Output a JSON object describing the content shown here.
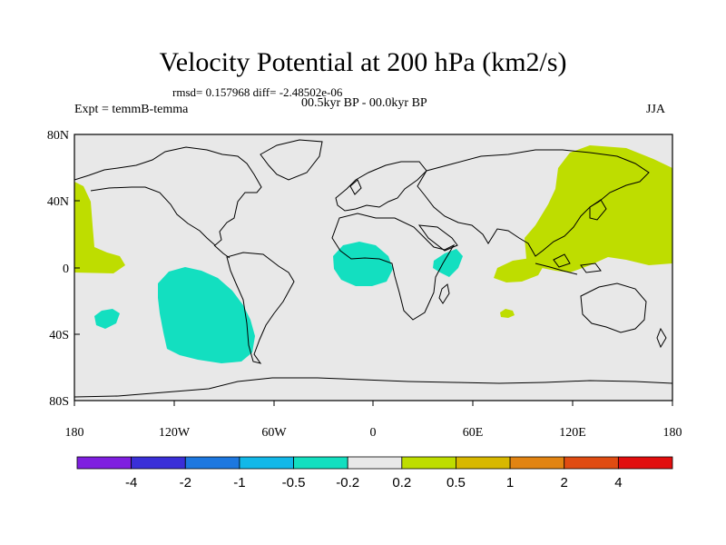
{
  "title": "Velocity Potential at 200 hPa (km2/s)",
  "stats": "rmsd= 0.157968 diff= -2.48502e-06",
  "experiment": "Expt = temmB-temma",
  "period": "00.5kyr BP - 00.0kyr BP",
  "season": "JJA",
  "lat_labels": [
    "80N",
    "40N",
    "0",
    "40S",
    "80S"
  ],
  "lon_labels": [
    "180",
    "120W",
    "60W",
    "0",
    "60E",
    "120E",
    "180"
  ],
  "colorbar": {
    "colors": [
      "#7f1fe0",
      "#3a2fd8",
      "#1d78e0",
      "#12b8e8",
      "#13dfc0",
      "#e8e8e8",
      "#bedd00",
      "#d8b800",
      "#e28412",
      "#e04c12",
      "#e20e0e"
    ],
    "labels": [
      "-4",
      "-2",
      "-1",
      "-0.5",
      "-0.2",
      "0.2",
      "0.5",
      "1",
      "2",
      "4"
    ]
  },
  "colors": {
    "positive": "#bedd00",
    "negative": "#13dfc0",
    "background": "#e8e8e8"
  }
}
